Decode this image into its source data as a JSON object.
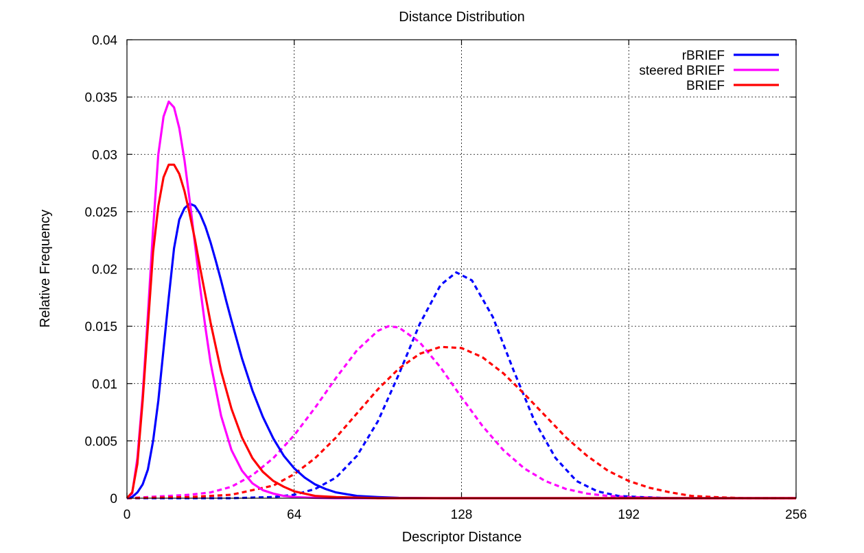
{
  "chart_data": {
    "type": "line",
    "title": "Distance Distribution",
    "xlabel": "Descriptor Distance",
    "ylabel": "Relative Frequency",
    "xlim": [
      0,
      256
    ],
    "ylim": [
      0,
      0.04
    ],
    "x_ticks": [
      0,
      64,
      128,
      192,
      256
    ],
    "y_ticks": [
      0,
      0.005,
      0.01,
      0.015,
      0.02,
      0.025,
      0.03,
      0.035,
      0.04
    ],
    "y_tick_labels": [
      "0",
      "0.005",
      "0.01",
      "0.015",
      "0.02",
      "0.025",
      "0.03",
      "0.035",
      "0.04"
    ],
    "grid": true,
    "legend_position": "top-right",
    "legend": [
      {
        "label": "rBRIEF",
        "color": "#0000ff"
      },
      {
        "label": "steered BRIEF",
        "color": "#ff00ff"
      },
      {
        "label": "BRIEF",
        "color": "#ff0000"
      }
    ],
    "series": [
      {
        "name": "rBRIEF",
        "color": "#0000ff",
        "style": "solid",
        "points": [
          [
            0,
            0
          ],
          [
            2,
            0.0001
          ],
          [
            4,
            0.0005
          ],
          [
            6,
            0.0012
          ],
          [
            8,
            0.0025
          ],
          [
            10,
            0.005
          ],
          [
            12,
            0.0085
          ],
          [
            14,
            0.013
          ],
          [
            16,
            0.0175
          ],
          [
            18,
            0.0218
          ],
          [
            20,
            0.0243
          ],
          [
            22,
            0.0253
          ],
          [
            24,
            0.0257
          ],
          [
            26,
            0.0255
          ],
          [
            28,
            0.0248
          ],
          [
            30,
            0.0237
          ],
          [
            32,
            0.0223
          ],
          [
            34,
            0.0207
          ],
          [
            36,
            0.019
          ],
          [
            38,
            0.0172
          ],
          [
            40,
            0.0155
          ],
          [
            44,
            0.0122
          ],
          [
            48,
            0.0094
          ],
          [
            52,
            0.0071
          ],
          [
            56,
            0.0052
          ],
          [
            60,
            0.0037
          ],
          [
            64,
            0.0026
          ],
          [
            68,
            0.0018
          ],
          [
            72,
            0.0012
          ],
          [
            76,
            0.0008
          ],
          [
            80,
            0.0005
          ],
          [
            88,
            0.0002
          ],
          [
            96,
            0.0001
          ],
          [
            104,
            3e-05
          ],
          [
            120,
            0
          ],
          [
            256,
            0
          ]
        ]
      },
      {
        "name": "steered BRIEF",
        "color": "#ff00ff",
        "style": "solid",
        "points": [
          [
            0,
            0
          ],
          [
            2,
            0.0004
          ],
          [
            4,
            0.0035
          ],
          [
            6,
            0.009
          ],
          [
            8,
            0.016
          ],
          [
            10,
            0.0235
          ],
          [
            12,
            0.03
          ],
          [
            14,
            0.0333
          ],
          [
            16,
            0.0346
          ],
          [
            18,
            0.0341
          ],
          [
            20,
            0.0323
          ],
          [
            22,
            0.0295
          ],
          [
            24,
            0.026
          ],
          [
            26,
            0.0222
          ],
          [
            28,
            0.0184
          ],
          [
            30,
            0.0149
          ],
          [
            32,
            0.0118
          ],
          [
            36,
            0.0072
          ],
          [
            40,
            0.0042
          ],
          [
            44,
            0.0024
          ],
          [
            48,
            0.0013
          ],
          [
            52,
            0.0007
          ],
          [
            56,
            0.0004
          ],
          [
            60,
            0.0002
          ],
          [
            64,
            0.0001
          ],
          [
            72,
            3e-05
          ],
          [
            80,
            0
          ],
          [
            256,
            0
          ]
        ]
      },
      {
        "name": "BRIEF",
        "color": "#ff0000",
        "style": "solid",
        "points": [
          [
            0,
            0
          ],
          [
            2,
            0.0005
          ],
          [
            4,
            0.003
          ],
          [
            6,
            0.0085
          ],
          [
            8,
            0.015
          ],
          [
            10,
            0.0215
          ],
          [
            12,
            0.0255
          ],
          [
            14,
            0.028
          ],
          [
            16,
            0.0291
          ],
          [
            18,
            0.0291
          ],
          [
            20,
            0.0283
          ],
          [
            22,
            0.0268
          ],
          [
            24,
            0.0248
          ],
          [
            26,
            0.0226
          ],
          [
            28,
            0.0201
          ],
          [
            30,
            0.0177
          ],
          [
            32,
            0.0153
          ],
          [
            36,
            0.0111
          ],
          [
            40,
            0.0078
          ],
          [
            44,
            0.0053
          ],
          [
            48,
            0.0035
          ],
          [
            52,
            0.0023
          ],
          [
            56,
            0.0015
          ],
          [
            60,
            0.001
          ],
          [
            64,
            0.0006
          ],
          [
            72,
            0.0002
          ],
          [
            80,
            0.0001
          ],
          [
            96,
            0
          ],
          [
            256,
            0
          ]
        ]
      },
      {
        "name": "rBRIEF",
        "color": "#0000ff",
        "style": "dashed",
        "points": [
          [
            0,
            0
          ],
          [
            40,
            0
          ],
          [
            56,
            0.0001
          ],
          [
            64,
            0.0003
          ],
          [
            72,
            0.0008
          ],
          [
            80,
            0.0018
          ],
          [
            88,
            0.0037
          ],
          [
            96,
            0.0067
          ],
          [
            104,
            0.0108
          ],
          [
            112,
            0.0152
          ],
          [
            120,
            0.0186
          ],
          [
            126,
            0.0197
          ],
          [
            132,
            0.019
          ],
          [
            140,
            0.0158
          ],
          [
            148,
            0.0111
          ],
          [
            156,
            0.0067
          ],
          [
            164,
            0.0035
          ],
          [
            172,
            0.0015
          ],
          [
            180,
            0.0006
          ],
          [
            188,
            0.0002
          ],
          [
            196,
            0.0001
          ],
          [
            208,
            0
          ],
          [
            256,
            0
          ]
        ]
      },
      {
        "name": "steered BRIEF",
        "color": "#ff00ff",
        "style": "dashed",
        "points": [
          [
            0,
            0
          ],
          [
            8,
            0.0001
          ],
          [
            16,
            0.0002
          ],
          [
            24,
            0.0003
          ],
          [
            32,
            0.0005
          ],
          [
            40,
            0.001
          ],
          [
            48,
            0.002
          ],
          [
            56,
            0.0035
          ],
          [
            64,
            0.0055
          ],
          [
            72,
            0.0079
          ],
          [
            80,
            0.0105
          ],
          [
            88,
            0.0129
          ],
          [
            96,
            0.0146
          ],
          [
            100,
            0.015
          ],
          [
            104,
            0.0149
          ],
          [
            112,
            0.0136
          ],
          [
            120,
            0.0114
          ],
          [
            128,
            0.0088
          ],
          [
            136,
            0.0063
          ],
          [
            144,
            0.0042
          ],
          [
            152,
            0.0026
          ],
          [
            160,
            0.0015
          ],
          [
            168,
            0.0008
          ],
          [
            176,
            0.0004
          ],
          [
            184,
            0.0002
          ],
          [
            192,
            0.0001
          ],
          [
            208,
            0
          ],
          [
            256,
            0
          ]
        ]
      },
      {
        "name": "BRIEF",
        "color": "#ff0000",
        "style": "dashed",
        "points": [
          [
            0,
            0
          ],
          [
            24,
            0.0001
          ],
          [
            40,
            0.0003
          ],
          [
            56,
            0.0011
          ],
          [
            64,
            0.0021
          ],
          [
            72,
            0.0035
          ],
          [
            80,
            0.0053
          ],
          [
            88,
            0.0074
          ],
          [
            96,
            0.0095
          ],
          [
            104,
            0.0113
          ],
          [
            112,
            0.0126
          ],
          [
            120,
            0.0132
          ],
          [
            128,
            0.0131
          ],
          [
            136,
            0.0123
          ],
          [
            144,
            0.0109
          ],
          [
            152,
            0.0091
          ],
          [
            160,
            0.0072
          ],
          [
            168,
            0.0053
          ],
          [
            176,
            0.0037
          ],
          [
            184,
            0.0024
          ],
          [
            192,
            0.0015
          ],
          [
            200,
            0.0009
          ],
          [
            208,
            0.0005
          ],
          [
            216,
            0.0002
          ],
          [
            224,
            0.0001
          ],
          [
            236,
            0
          ],
          [
            256,
            0
          ]
        ]
      }
    ]
  }
}
